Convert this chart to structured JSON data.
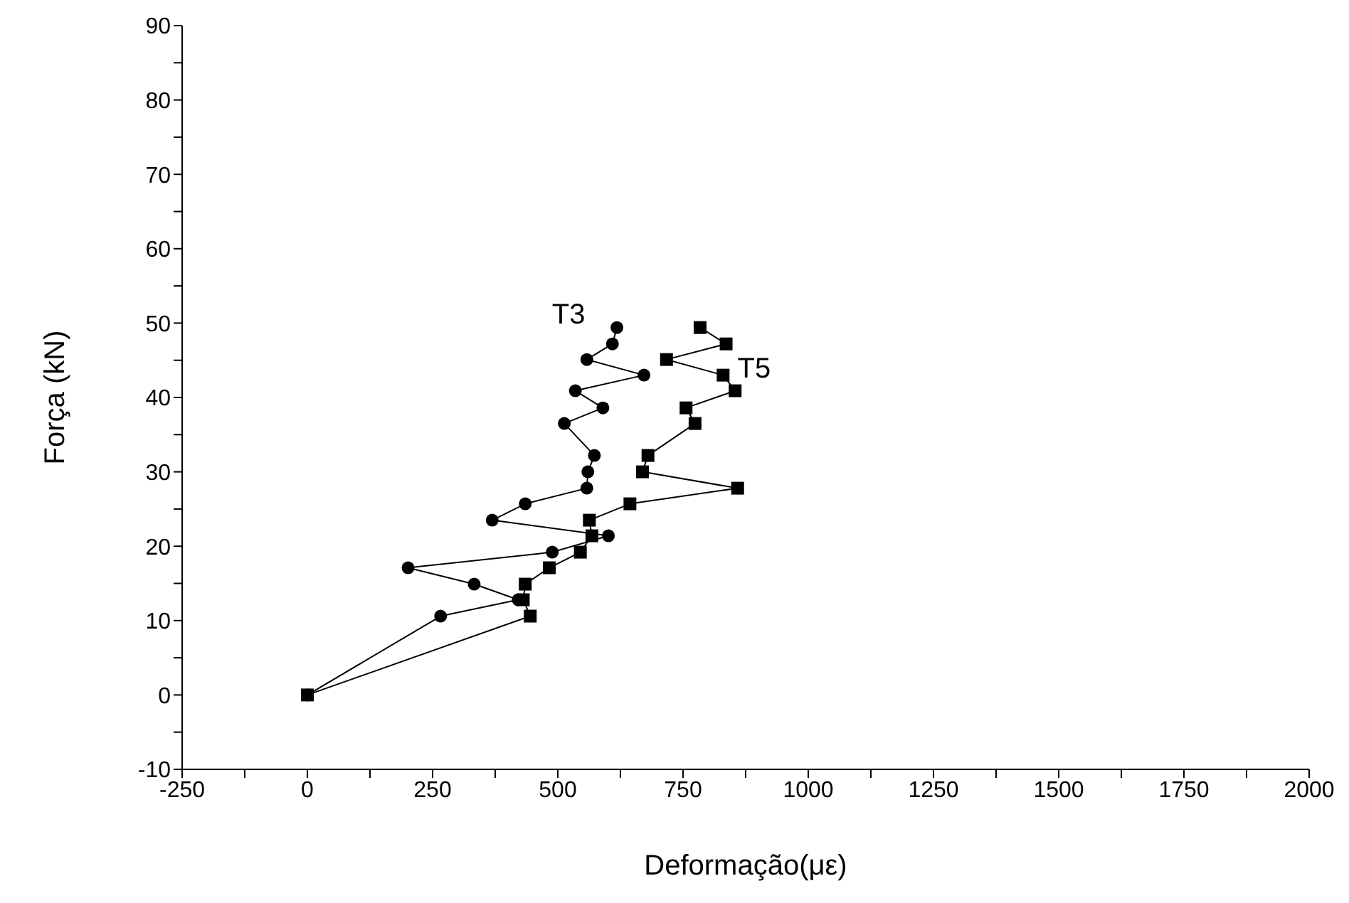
{
  "chart_data": {
    "type": "line",
    "xlabel": "Deformação(με)",
    "ylabel": "Força (kN)",
    "xlim": [
      -250,
      2000
    ],
    "ylim": [
      -10,
      90
    ],
    "xticks": [
      -250,
      {
        "value": -125,
        "label": null
      },
      0,
      {
        "value": 125,
        "label": null
      },
      250,
      {
        "value": 375,
        "label": null
      },
      500,
      {
        "value": 625,
        "label": null
      },
      750,
      {
        "value": 875,
        "label": null
      },
      1000,
      {
        "value": 1125,
        "label": null
      },
      1250,
      {
        "value": 1375,
        "label": null
      },
      1500,
      {
        "value": 1625,
        "label": null
      },
      1750,
      {
        "value": 1875,
        "label": null
      },
      2000
    ],
    "yticks": [
      -10,
      {
        "value": -5,
        "label": null
      },
      0,
      {
        "value": 5,
        "label": null
      },
      10,
      {
        "value": 15,
        "label": null
      },
      20,
      {
        "value": 25,
        "label": null
      },
      30,
      {
        "value": 35,
        "label": null
      },
      40,
      {
        "value": 45,
        "label": null
      },
      50,
      {
        "value": 55,
        "label": null
      },
      60,
      {
        "value": 65,
        "label": null
      },
      70,
      {
        "value": 75,
        "label": null
      },
      80,
      {
        "value": 85,
        "label": null
      },
      90
    ],
    "grid": false,
    "legend": false,
    "series": [
      {
        "name": "T3",
        "color": "#000000",
        "marker": "circle",
        "x": [
          0,
          266,
          421,
          333,
          201,
          489,
          601,
          369,
          435,
          558,
          560,
          573,
          513,
          590,
          535,
          672,
          558,
          609,
          618
        ],
        "values": [
          0,
          10.6,
          12.8,
          14.9,
          17.1,
          19.2,
          21.4,
          23.5,
          25.7,
          27.8,
          30.0,
          32.2,
          36.5,
          38.6,
          40.9,
          43.0,
          45.1,
          47.2,
          49.4
        ]
      },
      {
        "name": "T5",
        "color": "#000000",
        "marker": "square",
        "x": [
          0,
          445,
          431,
          435,
          483,
          545,
          568,
          563,
          644,
          859,
          669,
          680,
          774,
          756,
          854,
          830,
          717,
          836,
          784
        ],
        "values": [
          0,
          10.6,
          12.8,
          14.9,
          17.1,
          19.2,
          21.4,
          23.5,
          25.7,
          27.8,
          30.0,
          32.2,
          36.5,
          38.6,
          40.9,
          43.0,
          45.1,
          47.2,
          49.4
        ]
      }
    ]
  }
}
